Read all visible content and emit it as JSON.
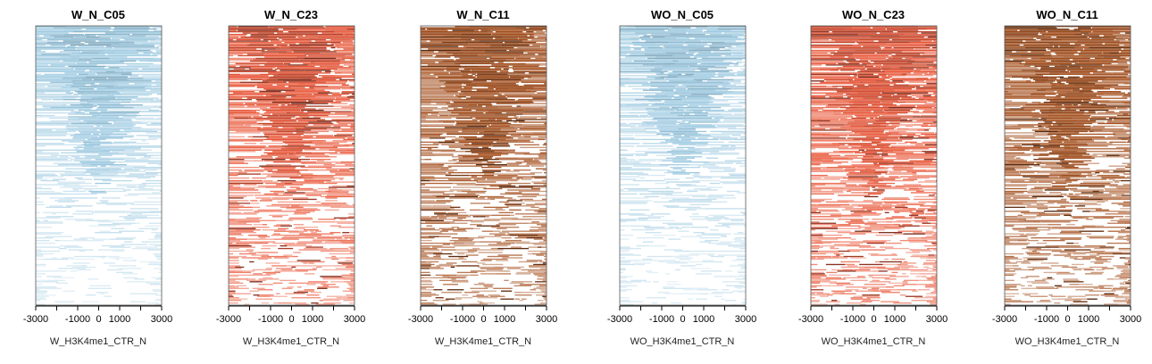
{
  "chart_data": [
    {
      "type": "heatmap",
      "title": "W_N_C05",
      "xlabel": "W_H3K4me1_CTR_N",
      "color": "#9ecae1",
      "profile": "declining",
      "seed": 11,
      "xlim": [
        -3000,
        3000
      ],
      "xticks": [
        -3000,
        -2000,
        -1000,
        0,
        1000,
        2000,
        3000
      ],
      "xtick_labels": [
        "-3000",
        "-1000",
        "0",
        "1000",
        "3000"
      ]
    },
    {
      "type": "heatmap",
      "title": "W_N_C23",
      "xlabel": "W_H3K4me1_CTR_N",
      "color": "#e9583a",
      "profile": "dense",
      "seed": 23,
      "xlim": [
        -3000,
        3000
      ],
      "xticks": [
        -3000,
        -2000,
        -1000,
        0,
        1000,
        2000,
        3000
      ],
      "xtick_labels": [
        "-3000",
        "-1000",
        "0",
        "1000",
        "3000"
      ]
    },
    {
      "type": "heatmap",
      "title": "W_N_C11",
      "xlabel": "W_H3K4me1_CTR_N",
      "color": "#a4501f",
      "profile": "dense",
      "seed": 37,
      "xlim": [
        -3000,
        3000
      ],
      "xticks": [
        -3000,
        -2000,
        -1000,
        0,
        1000,
        2000,
        3000
      ],
      "xtick_labels": [
        "-3000",
        "-1000",
        "0",
        "1000",
        "3000"
      ]
    },
    {
      "type": "heatmap",
      "title": "WO_N_C05",
      "xlabel": "WO_H3K4me1_CTR_N",
      "color": "#9ecae1",
      "profile": "declining",
      "seed": 53,
      "xlim": [
        -3000,
        3000
      ],
      "xticks": [
        -3000,
        -2000,
        -1000,
        0,
        1000,
        2000,
        3000
      ],
      "xtick_labels": [
        "-3000",
        "-1000",
        "0",
        "1000",
        "3000"
      ]
    },
    {
      "type": "heatmap",
      "title": "WO_N_C23",
      "xlabel": "WO_H3K4me1_CTR_N",
      "color": "#e9583a",
      "profile": "dense",
      "seed": 71,
      "xlim": [
        -3000,
        3000
      ],
      "xticks": [
        -3000,
        -2000,
        -1000,
        0,
        1000,
        2000,
        3000
      ],
      "xtick_labels": [
        "-3000",
        "-1000",
        "0",
        "1000",
        "3000"
      ]
    },
    {
      "type": "heatmap",
      "title": "WO_N_C11",
      "xlabel": "WO_H3K4me1_CTR_N",
      "color": "#a4501f",
      "profile": "dense",
      "seed": 89,
      "xlim": [
        -3000,
        3000
      ],
      "xticks": [
        -3000,
        -2000,
        -1000,
        0,
        1000,
        2000,
        3000
      ],
      "xtick_labels": [
        "-3000",
        "-1000",
        "0",
        "1000",
        "3000"
      ]
    }
  ]
}
